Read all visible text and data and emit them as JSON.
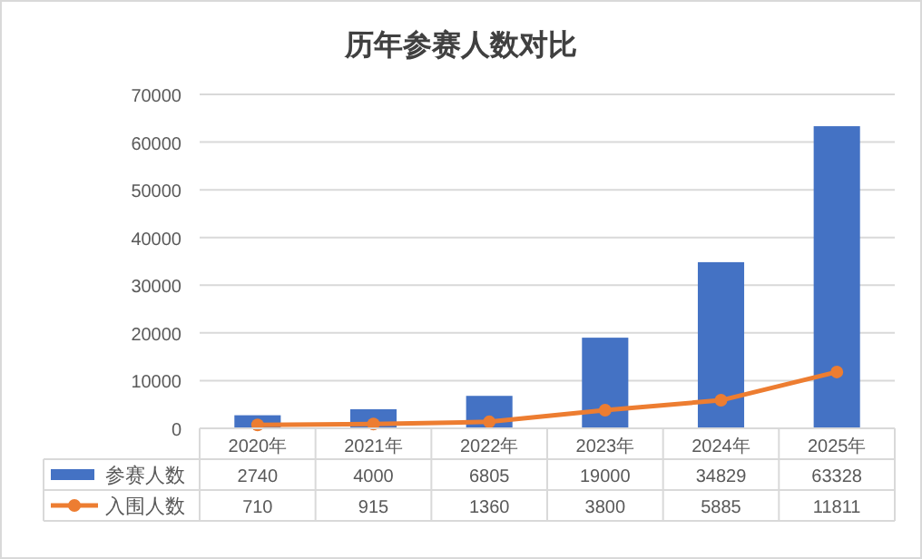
{
  "chart_data": {
    "type": "bar",
    "title": "历年参赛人数对比",
    "categories": [
      "2020年",
      "2021年",
      "2022年",
      "2023年",
      "2024年",
      "2025年"
    ],
    "series": [
      {
        "name": "参赛人数",
        "color": "#4472c4",
        "values": [
          2740,
          4000,
          6805,
          19000,
          34829,
          63328
        ]
      },
      {
        "name": "入围人数",
        "type": "line",
        "color": "#ed7d31",
        "marker": "circle",
        "values": [
          710,
          915,
          1360,
          3800,
          5885,
          11811
        ]
      }
    ],
    "ylim": [
      0,
      70000
    ],
    "yticks": [
      0,
      10000,
      20000,
      30000,
      40000,
      50000,
      60000,
      70000
    ],
    "grid": "y",
    "data_labels": true,
    "legend": "bottom"
  }
}
